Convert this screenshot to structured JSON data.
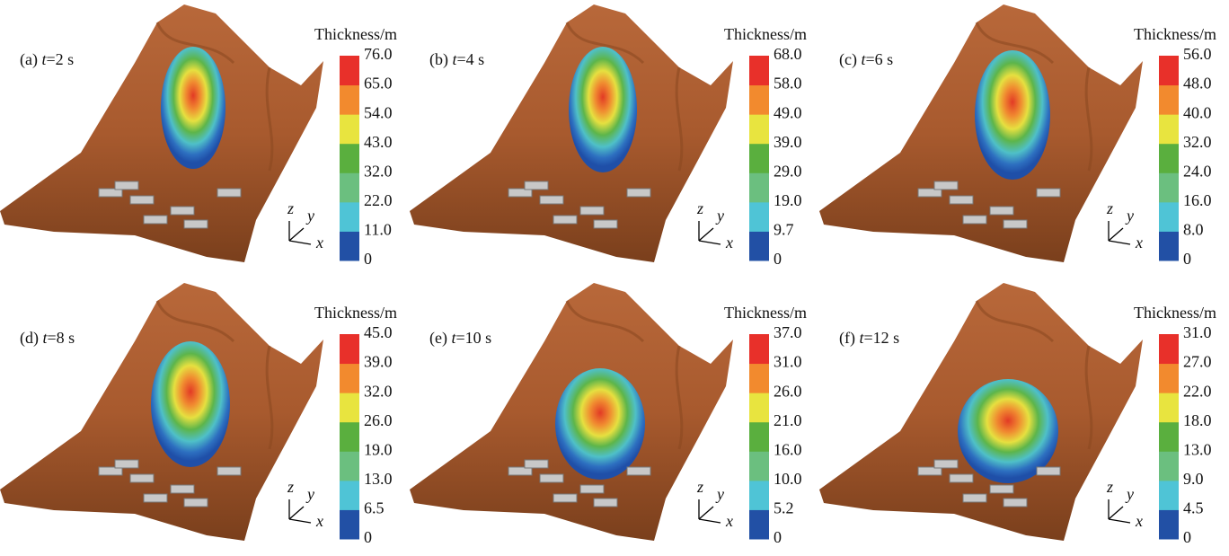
{
  "axes": {
    "x": "x",
    "y": "y",
    "z": "z"
  },
  "panels": [
    {
      "label": "(a) ",
      "t": "t",
      "time": "=2 s",
      "colorbar_title": "Thickness/m",
      "ticks": [
        "0",
        "11.0",
        "22.0",
        "32.0",
        "43.0",
        "54.0",
        "65.0",
        "76.0"
      ]
    },
    {
      "label": "(b) ",
      "t": "t",
      "time": "=4 s",
      "colorbar_title": "Thickness/m",
      "ticks": [
        "0",
        "9.7",
        "19.0",
        "29.0",
        "39.0",
        "49.0",
        "58.0",
        "68.0"
      ]
    },
    {
      "label": "(c) ",
      "t": "t",
      "time": "=6 s",
      "colorbar_title": "Thickness/m",
      "ticks": [
        "0",
        "8.0",
        "16.0",
        "24.0",
        "32.0",
        "40.0",
        "48.0",
        "56.0"
      ]
    },
    {
      "label": "(d) ",
      "t": "t",
      "time": "=8 s",
      "colorbar_title": "Thickness/m",
      "ticks": [
        "0",
        "6.5",
        "13.0",
        "19.0",
        "26.0",
        "32.0",
        "39.0",
        "45.0"
      ]
    },
    {
      "label": "(e) ",
      "t": "t",
      "time": "=10 s",
      "colorbar_title": "Thickness/m",
      "ticks": [
        "0",
        "5.2",
        "10.0",
        "16.0",
        "21.0",
        "26.0",
        "31.0",
        "37.0"
      ]
    },
    {
      "label": "(f) ",
      "t": "t",
      "time": "=12 s",
      "colorbar_title": "Thickness/m",
      "ticks": [
        "0",
        "4.5",
        "9.0",
        "13.0",
        "18.0",
        "22.0",
        "27.0",
        "31.0"
      ]
    }
  ]
}
